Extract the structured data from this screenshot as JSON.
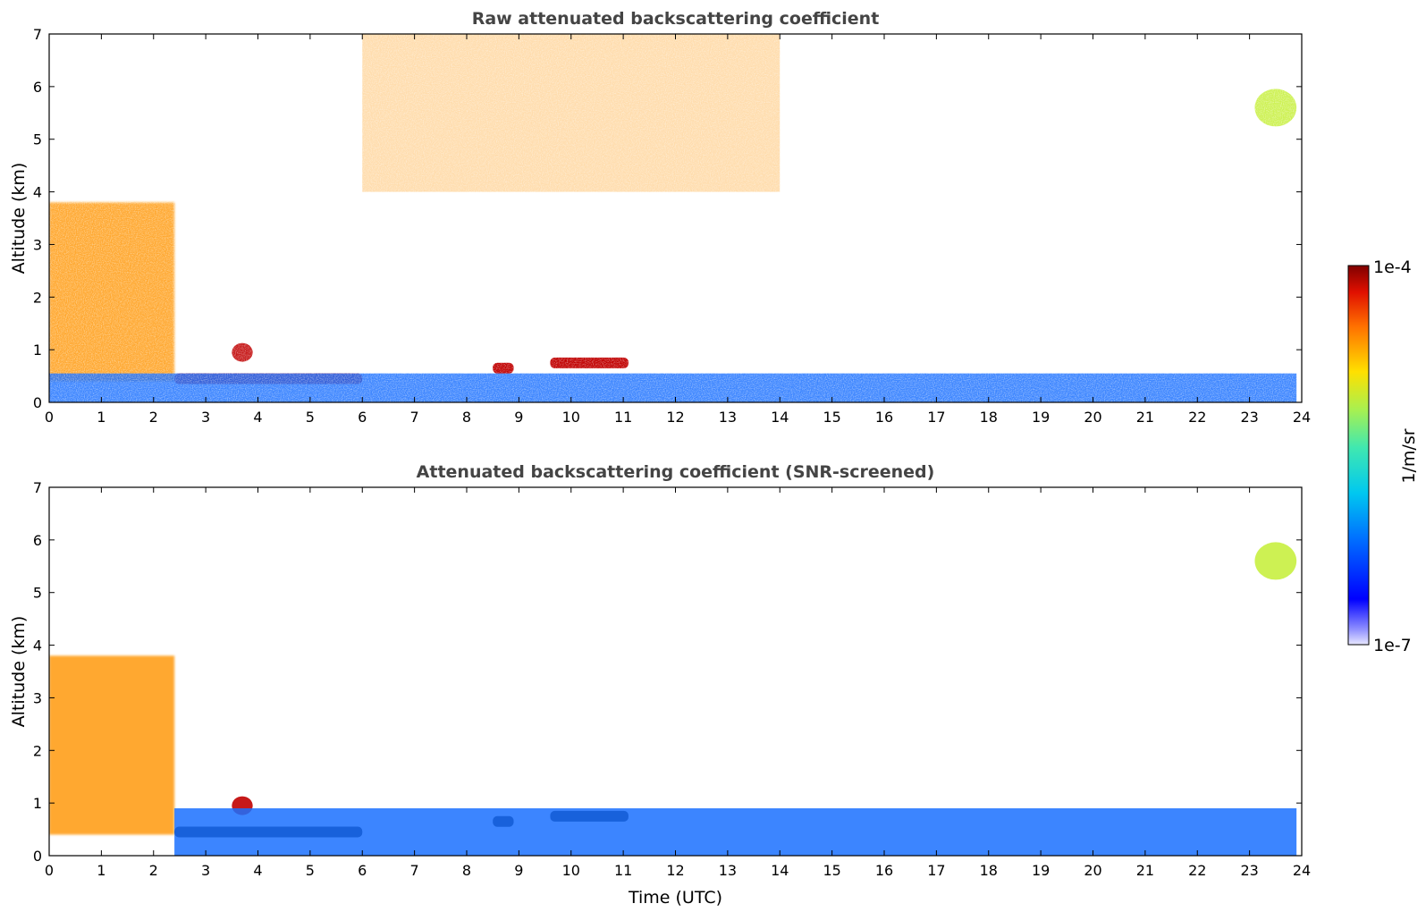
{
  "chart_data": [
    {
      "type": "heatmap",
      "title": "Raw attenuated backscattering coefficient",
      "xlabel": "",
      "ylabel": "Altitude (km)",
      "xlim": [
        0,
        24
      ],
      "ylim": [
        0,
        7
      ],
      "xticks": [
        "0",
        "1",
        "2",
        "3",
        "4",
        "5",
        "6",
        "7",
        "8",
        "9",
        "10",
        "11",
        "12",
        "13",
        "14",
        "15",
        "16",
        "17",
        "18",
        "19",
        "20",
        "21",
        "22",
        "23",
        "24"
      ],
      "yticks": [
        "0",
        "1",
        "2",
        "3",
        "4",
        "5",
        "6",
        "7"
      ],
      "features": [
        {
          "kind": "cloud-column",
          "t_start": 0.0,
          "t_end": 2.4,
          "z_bottom": 0.4,
          "z_top": 3.8,
          "level": "high"
        },
        {
          "kind": "cloud-layer",
          "t_start": 2.4,
          "t_end": 6.0,
          "altitude": 0.45,
          "level": "very-high"
        },
        {
          "kind": "cloud-patch",
          "t_start": 3.5,
          "t_end": 3.9,
          "altitude": 0.95,
          "level": "very-high"
        },
        {
          "kind": "cloud-layer",
          "t_start": 8.5,
          "t_end": 8.9,
          "altitude": 0.65,
          "level": "very-high"
        },
        {
          "kind": "cloud-layer",
          "t_start": 9.6,
          "t_end": 11.1,
          "altitude": 0.75,
          "level": "very-high"
        },
        {
          "kind": "boundary-layer",
          "t_start": 0.0,
          "t_end": 23.9,
          "z_bottom": 0.0,
          "z_top": 0.55,
          "level": "low"
        },
        {
          "kind": "noise-region",
          "t_start": 6.0,
          "t_end": 14.0,
          "z_bottom": 4.0,
          "z_top": 7.0,
          "level": "high"
        },
        {
          "kind": "cloud-patch",
          "t_start": 23.1,
          "t_end": 23.9,
          "altitude": 5.6,
          "level": "medium"
        }
      ]
    },
    {
      "type": "heatmap",
      "title": "Attenuated backscattering coefficient (SNR-screened)",
      "xlabel": "Time (UTC)",
      "ylabel": "Altitude (km)",
      "xlim": [
        0,
        24
      ],
      "ylim": [
        0,
        7
      ],
      "xticks": [
        "0",
        "1",
        "2",
        "3",
        "4",
        "5",
        "6",
        "7",
        "8",
        "9",
        "10",
        "11",
        "12",
        "13",
        "14",
        "15",
        "16",
        "17",
        "18",
        "19",
        "20",
        "21",
        "22",
        "23",
        "24"
      ],
      "yticks": [
        "0",
        "1",
        "2",
        "3",
        "4",
        "5",
        "6",
        "7"
      ],
      "features": [
        {
          "kind": "cloud-column",
          "t_start": 0.0,
          "t_end": 2.4,
          "z_bottom": 0.4,
          "z_top": 3.8,
          "level": "high"
        },
        {
          "kind": "cloud-layer",
          "t_start": 2.4,
          "t_end": 6.0,
          "altitude": 0.45,
          "level": "saturated"
        },
        {
          "kind": "cloud-patch",
          "t_start": 3.5,
          "t_end": 3.9,
          "altitude": 0.95,
          "level": "very-high"
        },
        {
          "kind": "cloud-layer",
          "t_start": 8.5,
          "t_end": 8.9,
          "altitude": 0.65,
          "level": "saturated"
        },
        {
          "kind": "cloud-layer",
          "t_start": 9.6,
          "t_end": 11.1,
          "altitude": 0.75,
          "level": "saturated"
        },
        {
          "kind": "boundary-layer",
          "t_start": 2.4,
          "t_end": 23.9,
          "z_bottom": 0.0,
          "z_top": 0.9,
          "level": "low"
        },
        {
          "kind": "cloud-patch",
          "t_start": 23.1,
          "t_end": 23.9,
          "altitude": 5.6,
          "level": "medium"
        }
      ]
    }
  ],
  "colorbar": {
    "max_label": "1e-4",
    "min_label": "1e-7",
    "unit": "1/m/sr",
    "colormap": [
      "#0000a0",
      "#0000ff",
      "#0060ff",
      "#00b0ff",
      "#20e0d0",
      "#80f080",
      "#e0f040",
      "#ffd000",
      "#ff8000",
      "#ff2000",
      "#b00000",
      "#700000"
    ]
  }
}
